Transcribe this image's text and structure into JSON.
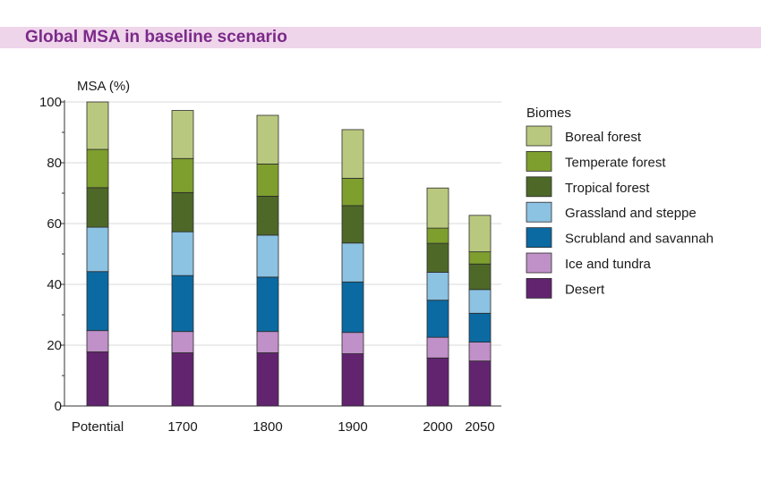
{
  "title": "Global MSA in baseline scenario",
  "chart_data": {
    "type": "bar",
    "stacked": true,
    "title": "Global MSA in baseline scenario",
    "xlabel": "",
    "ylabel": "MSA (%)",
    "ylim": [
      0,
      100
    ],
    "yticks": [
      0,
      20,
      40,
      60,
      80,
      100
    ],
    "grid": true,
    "legend_title": "Biomes",
    "legend_position": "right",
    "categories": [
      "Potential",
      "1700",
      "1800",
      "1900",
      "2000",
      "2050"
    ],
    "series": [
      {
        "name": "Desert",
        "color": "#62246f",
        "values": [
          17.8,
          17.5,
          17.5,
          17.2,
          15.8,
          14.8
        ]
      },
      {
        "name": "Ice and tundra",
        "color": "#c090c8",
        "values": [
          7.0,
          7.0,
          7.0,
          7.0,
          6.8,
          6.2
        ]
      },
      {
        "name": "Scrubland and savannah",
        "color": "#0b6aa2",
        "values": [
          19.4,
          18.4,
          17.9,
          16.6,
          12.2,
          9.5
        ]
      },
      {
        "name": "Grassland and steppe",
        "color": "#8cc2e2",
        "values": [
          14.6,
          14.4,
          13.8,
          12.8,
          9.2,
          7.8
        ]
      },
      {
        "name": "Tropical forest",
        "color": "#4e6828",
        "values": [
          13.0,
          12.9,
          12.8,
          12.3,
          9.5,
          8.4
        ]
      },
      {
        "name": "Temperate forest",
        "color": "#7e9e2e",
        "values": [
          12.6,
          11.2,
          10.6,
          9.0,
          5.0,
          4.0
        ]
      },
      {
        "name": "Boreal forest",
        "color": "#b9c87f",
        "values": [
          15.6,
          15.8,
          16.0,
          16.0,
          13.2,
          12.0
        ]
      }
    ]
  }
}
